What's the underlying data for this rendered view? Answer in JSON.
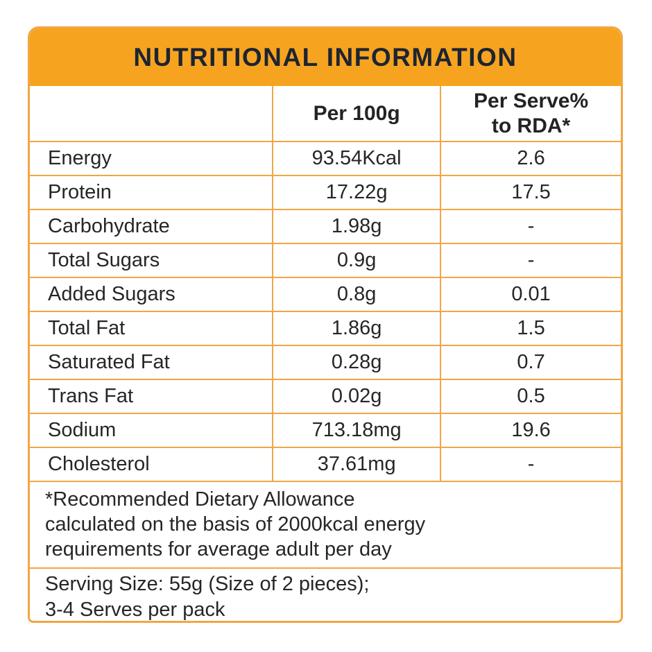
{
  "title": "NUTRITIONAL INFORMATION",
  "columns": {
    "nutrient": "",
    "per_100g": "Per 100g",
    "per_serve_line1": "Per Serve%",
    "per_serve_line2": "to RDA*"
  },
  "rows": [
    {
      "label": "Energy",
      "per_100g": "93.54Kcal",
      "per_serve": "2.6"
    },
    {
      "label": "Protein",
      "per_100g": "17.22g",
      "per_serve": "17.5"
    },
    {
      "label": "Carbohydrate",
      "per_100g": "1.98g",
      "per_serve": "-"
    },
    {
      "label": "Total Sugars",
      "per_100g": "0.9g",
      "per_serve": "-"
    },
    {
      "label": "Added Sugars",
      "per_100g": "0.8g",
      "per_serve": "0.01"
    },
    {
      "label": "Total Fat",
      "per_100g": "1.86g",
      "per_serve": "1.5"
    },
    {
      "label": "Saturated Fat",
      "per_100g": "0.28g",
      "per_serve": "0.7"
    },
    {
      "label": "Trans Fat",
      "per_100g": "0.02g",
      "per_serve": "0.5"
    },
    {
      "label": "Sodium",
      "per_100g": "713.18mg",
      "per_serve": "19.6"
    },
    {
      "label": "Cholesterol",
      "per_100g": "37.61mg",
      "per_serve": "-"
    }
  ],
  "footnote": {
    "line1": "*Recommended Dietary Allowance",
    "line2": "calculated on the basis of 2000kcal energy",
    "line3": "requirements for average adult per day"
  },
  "serving": {
    "line1": "Serving Size: 55g (Size of 2 pieces);",
    "line2": "3-4 Serves per pack"
  },
  "colors": {
    "brand_orange": "#F6A41F",
    "border_orange": "#F2A644",
    "title_text": "#1D2433",
    "body_text": "#262626",
    "background": "#FFFFFF"
  }
}
